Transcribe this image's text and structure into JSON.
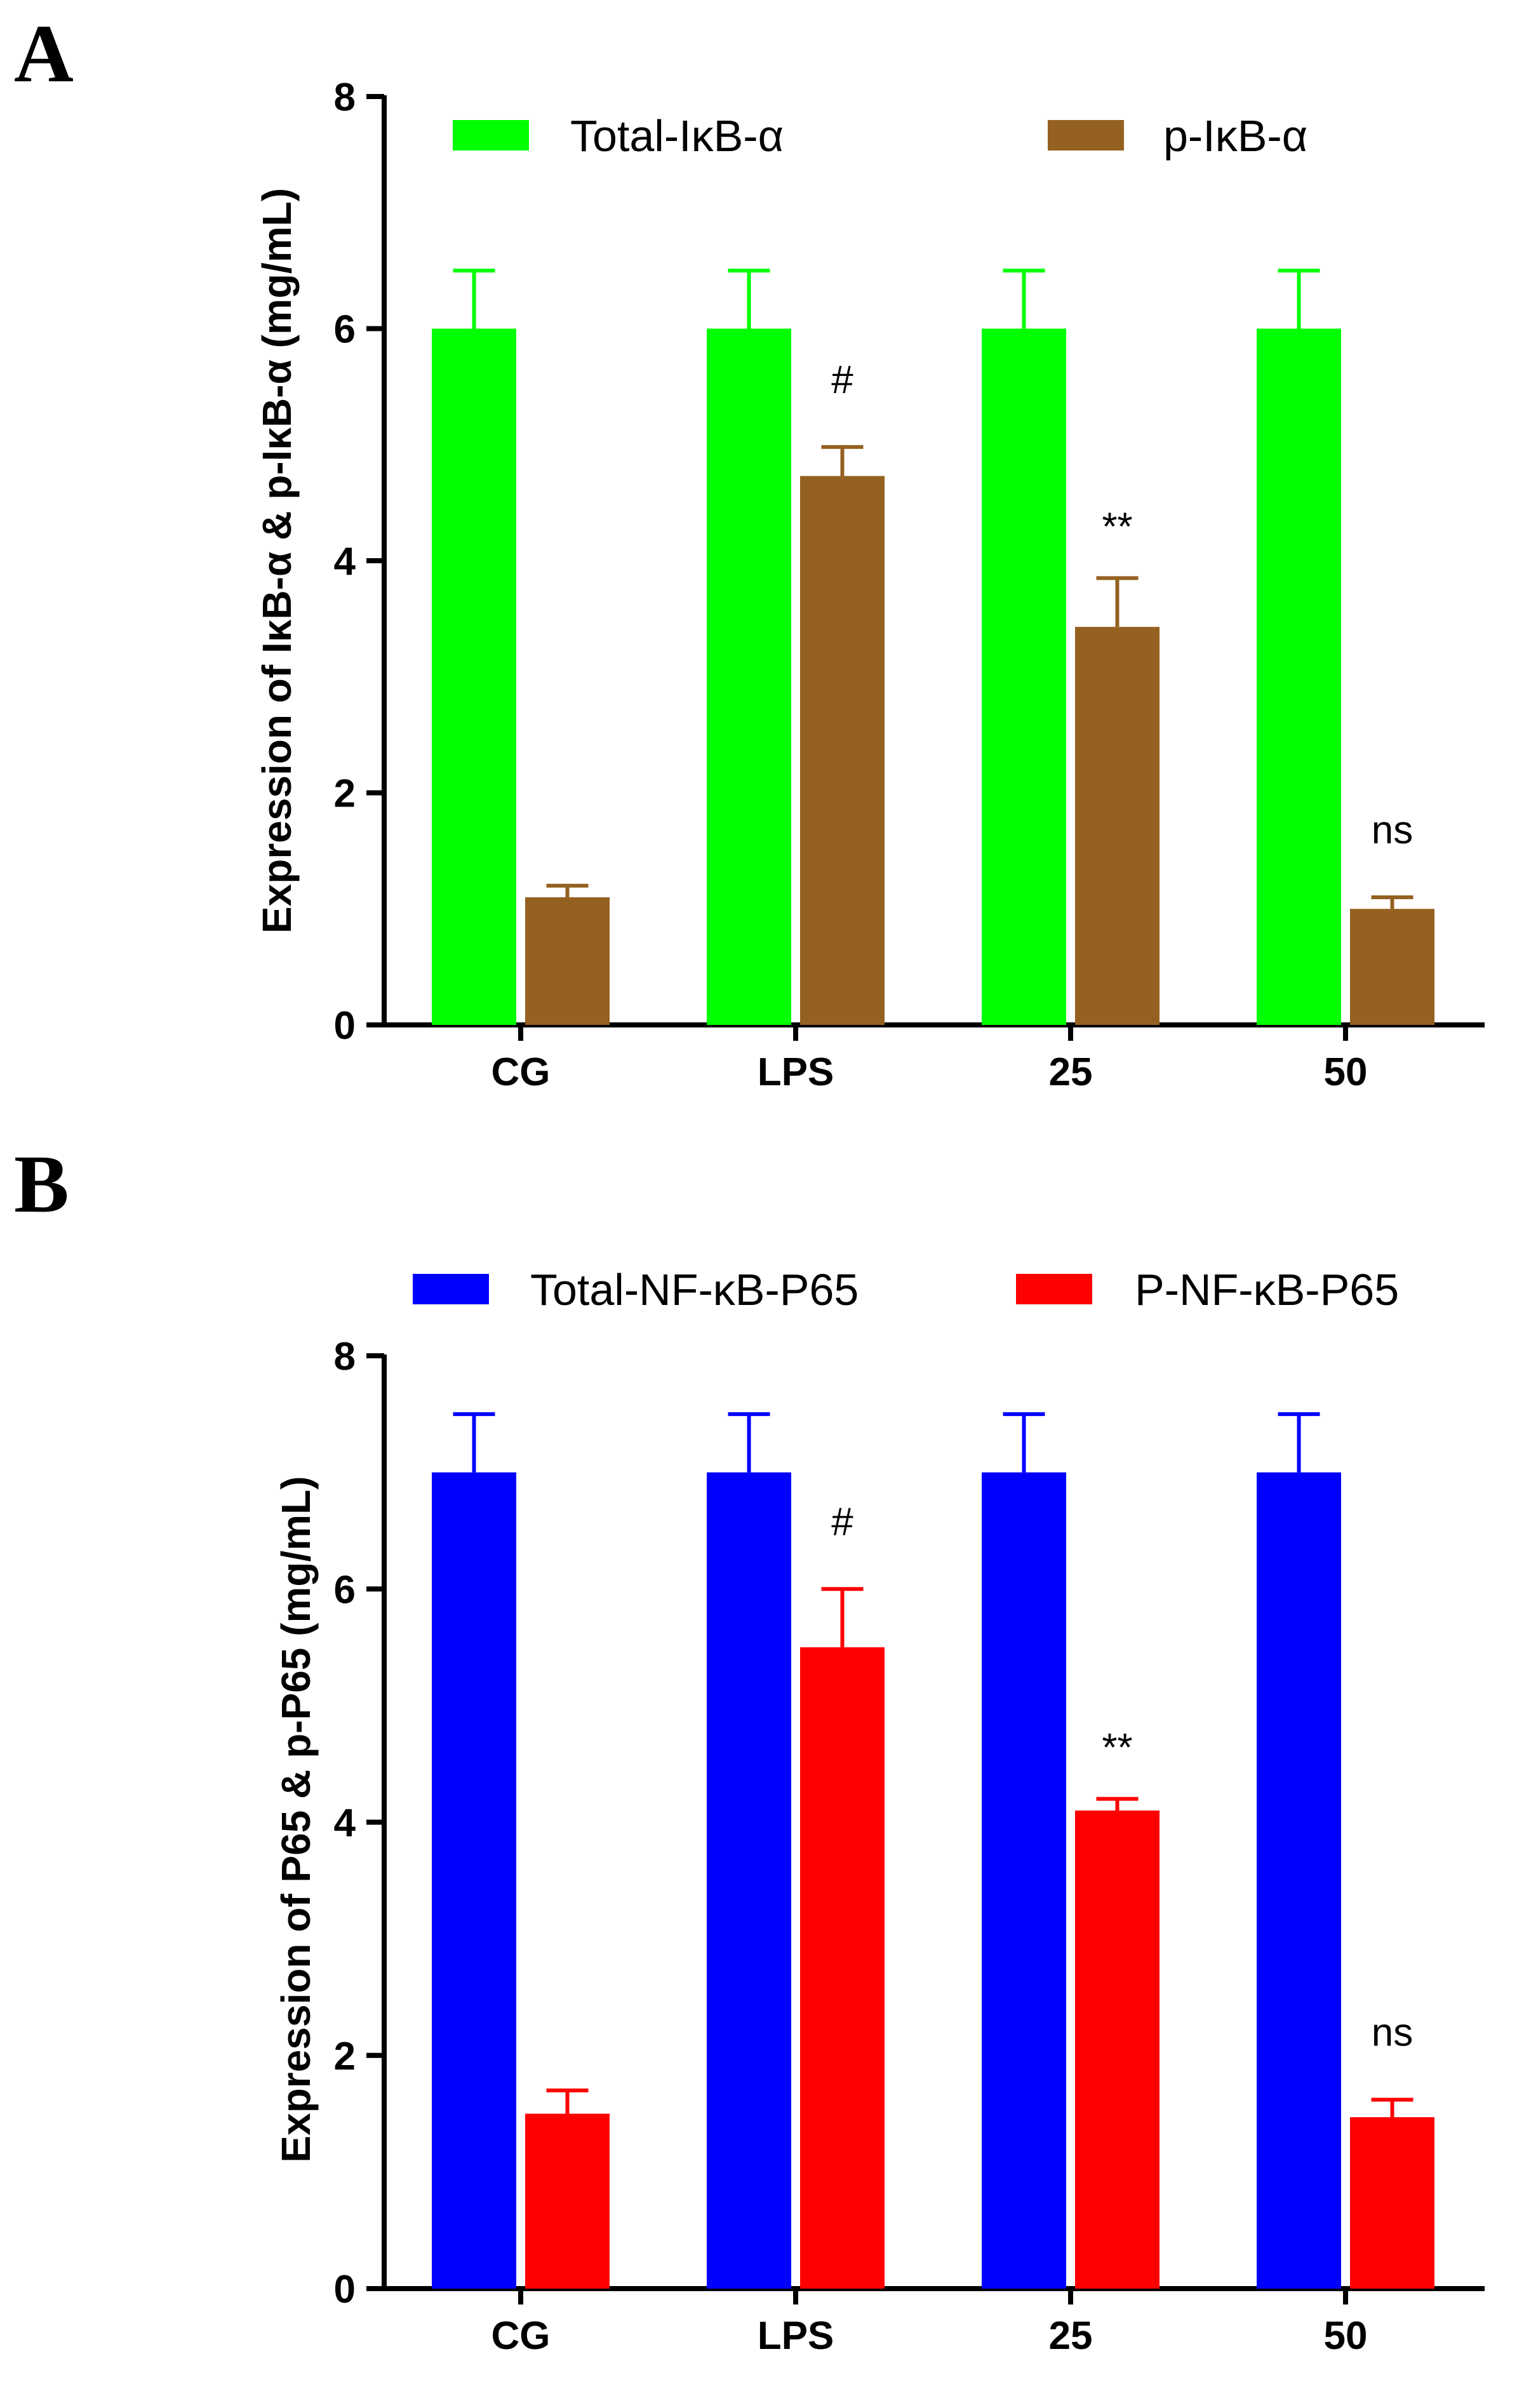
{
  "chart_data": [
    {
      "type": "bar",
      "panel": "A",
      "categories": [
        "CG",
        "LPS",
        "25",
        "50"
      ],
      "ylabel": "Expression of IκB-α & p-IκB-α (mg/mL)",
      "xlabel": "",
      "ylim": [
        0,
        8
      ],
      "yticks": [
        0,
        2,
        4,
        6,
        8
      ],
      "legend_position": "top",
      "series": [
        {
          "name": "Total-IκB-α",
          "color": "#00ff00",
          "values": [
            6.0,
            6.0,
            6.0,
            6.0
          ],
          "errors": [
            0.5,
            0.5,
            0.5,
            0.5
          ]
        },
        {
          "name": "p-IκB-α",
          "color": "#946120",
          "values": [
            1.1,
            4.73,
            3.43,
            1.0
          ],
          "errors": [
            0.1,
            0.25,
            0.42,
            0.1
          ]
        }
      ],
      "annotations": [
        {
          "category": "LPS",
          "series": "p-IκB-α",
          "text": "#"
        },
        {
          "category": "25",
          "series": "p-IκB-α",
          "text": "**"
        },
        {
          "category": "50",
          "series": "p-IκB-α",
          "text": "ns"
        }
      ]
    },
    {
      "type": "bar",
      "panel": "B",
      "categories": [
        "CG",
        "LPS",
        "25",
        "50"
      ],
      "ylabel": "Expression of P65 & p-P65 (mg/mL)",
      "xlabel": "",
      "ylim": [
        0,
        8
      ],
      "yticks": [
        0,
        2,
        4,
        6,
        8
      ],
      "legend_position": "top",
      "series": [
        {
          "name": "Total-NF-κB-P65",
          "color": "#0000ff",
          "values": [
            7.0,
            7.0,
            7.0,
            7.0
          ],
          "errors": [
            0.5,
            0.5,
            0.5,
            0.5
          ]
        },
        {
          "name": "P-NF-κB-P65",
          "color": "#ff0000",
          "values": [
            1.5,
            5.5,
            4.1,
            1.47
          ],
          "errors": [
            0.2,
            0.5,
            0.1,
            0.15
          ]
        }
      ],
      "annotations": [
        {
          "category": "LPS",
          "series": "P-NF-κB-P65",
          "text": "#"
        },
        {
          "category": "25",
          "series": "P-NF-κB-P65",
          "text": "**"
        },
        {
          "category": "50",
          "series": "P-NF-κB-P65",
          "text": "ns"
        }
      ]
    }
  ]
}
